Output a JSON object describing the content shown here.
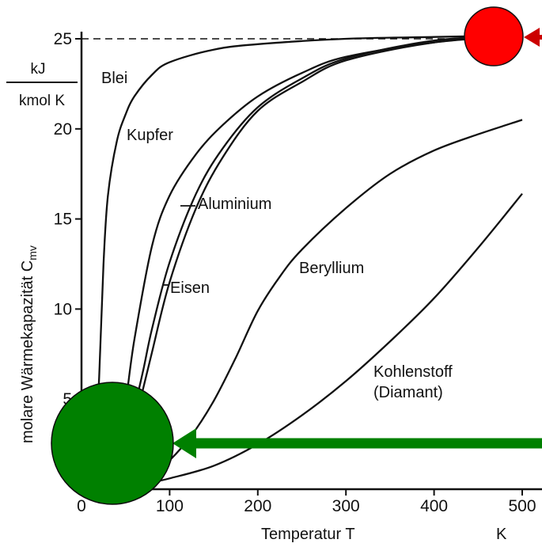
{
  "chart_data": {
    "type": "line",
    "xlabel": "Temperatur T",
    "xunit": "K",
    "ylabel": "molare Wärmekapazität C_mv",
    "ylabel_main": "molare Wärmekapazität C",
    "ylabel_sub": "mv",
    "yunit_top": "kJ",
    "yunit_bottom": "kmol K",
    "xlim": [
      0,
      520
    ],
    "ylim": [
      0,
      26
    ],
    "xticks": [
      {
        "value": 0,
        "label": "0"
      },
      {
        "value": 100,
        "label": "100"
      },
      {
        "value": 200,
        "label": "200"
      },
      {
        "value": 300,
        "label": "300"
      },
      {
        "value": 400,
        "label": "400"
      },
      {
        "value": 500,
        "label": "500"
      }
    ],
    "yticks": [
      {
        "value": 5,
        "label": "5"
      },
      {
        "value": 10,
        "label": "10"
      },
      {
        "value": 15,
        "label": "15"
      },
      {
        "value": 20,
        "label": "20"
      },
      {
        "value": 25,
        "label": "25"
      }
    ],
    "grid": false,
    "reference_line": {
      "y": 25,
      "style": "dashed"
    },
    "series": [
      {
        "name": "Blei",
        "x": [
          10,
          15,
          20,
          25,
          30,
          40,
          50,
          60,
          80,
          100,
          150,
          200,
          300,
          400,
          500
        ],
        "y": [
          0.3,
          2.0,
          6.2,
          12.5,
          16.3,
          19.3,
          20.8,
          21.8,
          23.0,
          23.7,
          24.4,
          24.7,
          25.0,
          25.1,
          25.2
        ]
      },
      {
        "name": "Kupfer",
        "x": [
          10,
          20,
          30,
          40,
          50,
          60,
          80,
          100,
          130,
          160,
          200,
          250,
          300,
          400,
          500
        ],
        "y": [
          0.02,
          0.2,
          0.8,
          2.2,
          4.8,
          8.3,
          13.5,
          16.3,
          18.6,
          20.2,
          21.8,
          23.1,
          24.0,
          24.8,
          25.2
        ]
      },
      {
        "name": "Aluminium",
        "x": [
          10,
          20,
          30,
          40,
          50,
          60,
          70,
          80,
          100,
          130,
          160,
          200,
          250,
          300,
          400,
          500
        ],
        "y": [
          0.02,
          0.1,
          0.4,
          1.2,
          2.6,
          4.5,
          6.6,
          8.9,
          12.6,
          16.4,
          18.9,
          21.2,
          22.8,
          23.9,
          24.9,
          25.2
        ]
      },
      {
        "name": "Eisen",
        "x": [
          10,
          20,
          30,
          40,
          50,
          60,
          70,
          80,
          100,
          130,
          160,
          200,
          250,
          300,
          400,
          500
        ],
        "y": [
          0.02,
          0.08,
          0.3,
          0.9,
          2.0,
          3.6,
          5.6,
          7.6,
          11.5,
          15.6,
          18.4,
          21.0,
          22.6,
          23.8,
          24.8,
          25.2
        ]
      },
      {
        "name": "Beryllium",
        "x": [
          20,
          50,
          80,
          100,
          125,
          150,
          175,
          200,
          225,
          250,
          300,
          350,
          400,
          450,
          500
        ],
        "y": [
          0.1,
          0.3,
          0.8,
          1.6,
          3.0,
          4.9,
          7.3,
          9.9,
          11.8,
          13.3,
          15.6,
          17.5,
          18.8,
          19.7,
          20.5
        ]
      },
      {
        "name": "Kohlenstoff (Diamant)",
        "label_lines": [
          "Kohlenstoff",
          "(Diamant)"
        ],
        "x": [
          20,
          50,
          80,
          100,
          150,
          200,
          250,
          300,
          350,
          400,
          450,
          500
        ],
        "y": [
          0.05,
          0.2,
          0.4,
          0.6,
          1.3,
          2.5,
          4.1,
          6.0,
          8.2,
          10.6,
          13.4,
          16.4
        ]
      }
    ],
    "annotations": [
      {
        "type": "circle",
        "color": "#ff0000",
        "target": {
          "x": 470,
          "y": 25
        }
      },
      {
        "type": "arrow",
        "color": "#cc0000",
        "direction": "left",
        "target": {
          "x": 500,
          "y": 25
        }
      },
      {
        "type": "circle",
        "color": "#008000",
        "target": {
          "x": 30,
          "y": 2.5
        }
      },
      {
        "type": "arrow",
        "color": "#008000",
        "direction": "left",
        "target": {
          "x": 100,
          "y": 2.5
        }
      }
    ]
  }
}
